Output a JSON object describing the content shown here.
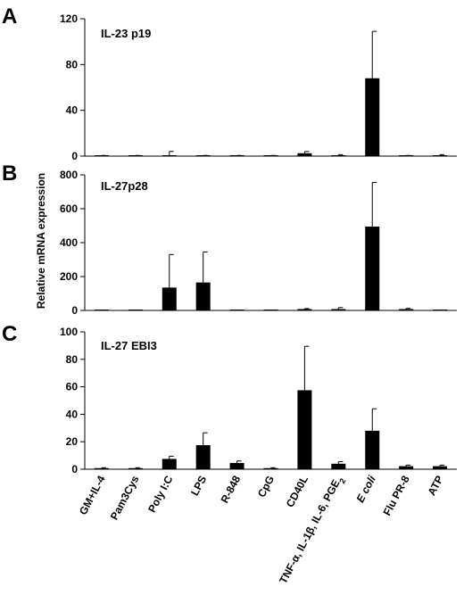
{
  "figure": {
    "ylabel": "Relative mRNA expression",
    "categories": [
      "GM+IL-4",
      "Pam3Cys",
      "Poly I:C",
      "LPS",
      "R-848",
      "CpG",
      "CD40L",
      "TNF-α, IL-1β, IL-6, PGE2",
      "E coli",
      "Flu PR-8",
      "ATP"
    ]
  },
  "chart_data": [
    {
      "type": "bar",
      "panel": "A",
      "title": "IL-23 p19",
      "categories": [
        "GM+IL-4",
        "Pam3Cys",
        "Poly I:C",
        "LPS",
        "R-848",
        "CpG",
        "CD40L",
        "TNF-α, IL-1β, IL-6, PGE2",
        "E coli",
        "Flu PR-8",
        "ATP"
      ],
      "values": [
        0.3,
        0.3,
        0.6,
        0.3,
        0.3,
        0.3,
        2.5,
        0.3,
        68,
        0.3,
        0.3
      ],
      "errors": [
        0.3,
        0.3,
        3.5,
        0.3,
        0.3,
        0.3,
        1.5,
        1,
        41,
        0.3,
        1
      ],
      "ylim": [
        0,
        120
      ],
      "yticks": [
        0,
        40,
        80,
        120
      ]
    },
    {
      "type": "bar",
      "panel": "B",
      "title": "IL-27p28",
      "categories": [
        "GM+IL-4",
        "Pam3Cys",
        "Poly I:C",
        "LPS",
        "R-848",
        "CpG",
        "CD40L",
        "TNF-α, IL-1β, IL-6, PGE2",
        "E coli",
        "Flu PR-8",
        "ATP"
      ],
      "values": [
        1,
        1,
        135,
        165,
        1,
        1,
        8,
        8,
        495,
        8,
        2
      ],
      "errors": [
        1,
        1,
        195,
        180,
        1,
        1,
        3,
        9,
        260,
        4,
        1
      ],
      "ylim": [
        0,
        800
      ],
      "yticks": [
        0,
        200,
        400,
        600,
        800
      ]
    },
    {
      "type": "bar",
      "panel": "C",
      "title": "IL-27 EBI3",
      "categories": [
        "GM+IL-4",
        "Pam3Cys",
        "Poly I:C",
        "LPS",
        "R-848",
        "CpG",
        "CD40L",
        "TNF-α, IL-1β, IL-6, PGE2",
        "E coli",
        "Flu PR-8",
        "ATP"
      ],
      "values": [
        0.8,
        0.8,
        7.5,
        17.5,
        4.5,
        0.8,
        57.5,
        4,
        28,
        2.2,
        2.2
      ],
      "errors": [
        0.3,
        0.3,
        2,
        9,
        1.5,
        0.3,
        32,
        1.5,
        16,
        0.8,
        0.8
      ],
      "ylim": [
        0,
        100
      ],
      "yticks": [
        0,
        20,
        40,
        60,
        80,
        100
      ]
    }
  ]
}
